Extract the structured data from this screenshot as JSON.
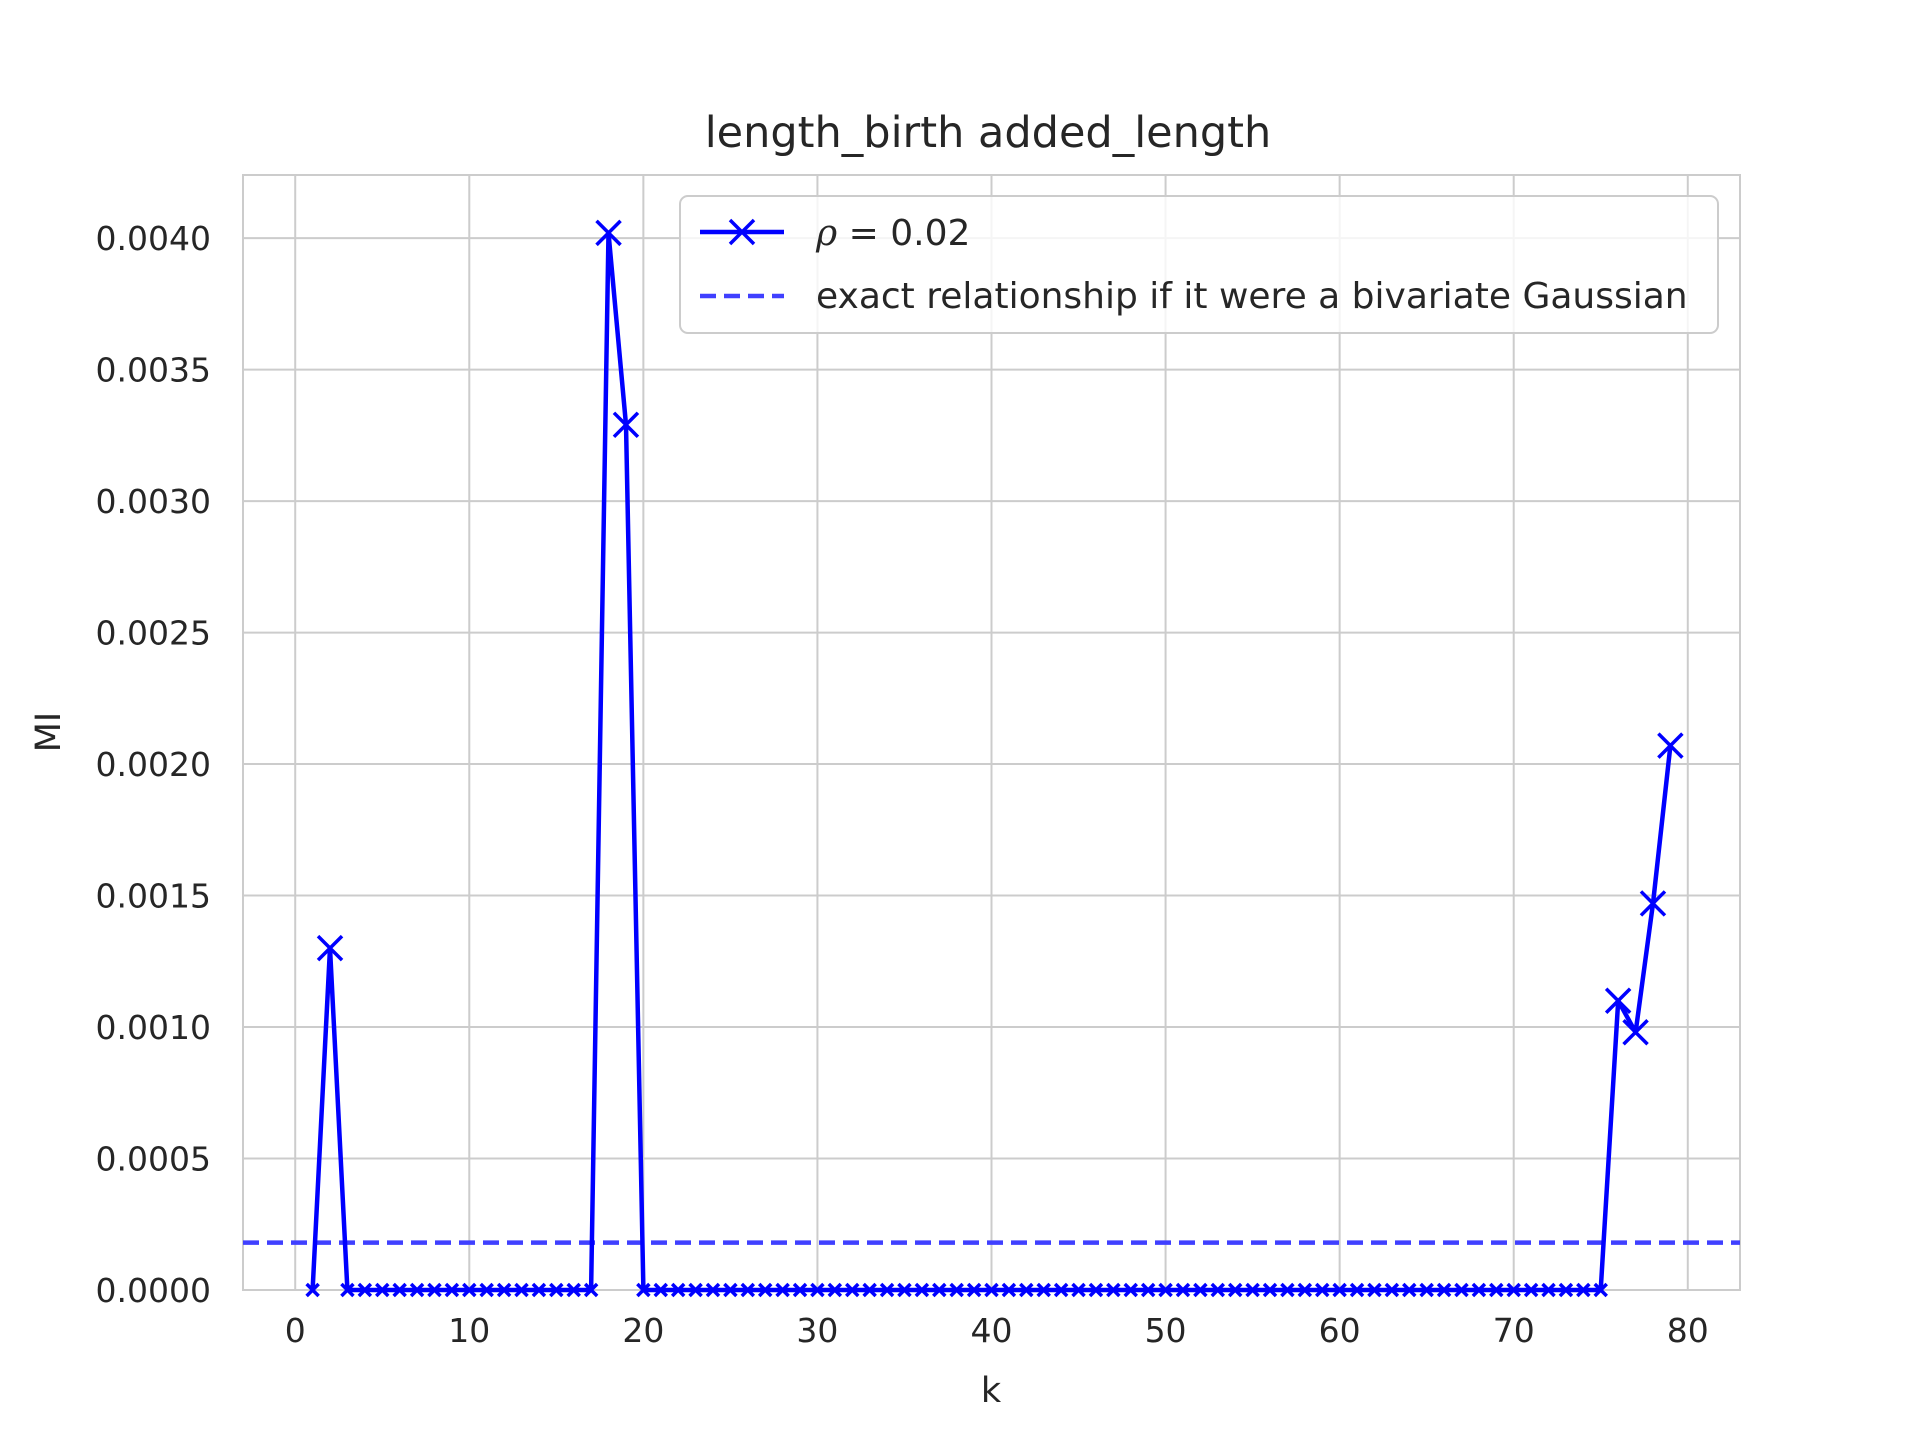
{
  "chart_data": {
    "type": "line",
    "title": "length_birth added_length",
    "xlabel": "k",
    "ylabel": "MI",
    "xlim": [
      -3,
      83
    ],
    "ylim": [
      0,
      0.00424
    ],
    "xticks": [
      0,
      10,
      20,
      30,
      40,
      50,
      60,
      70,
      80
    ],
    "xtick_labels": [
      "0",
      "10",
      "20",
      "30",
      "40",
      "50",
      "60",
      "70",
      "80"
    ],
    "yticks": [
      0,
      0.0005,
      0.001,
      0.0015,
      0.002,
      0.0025,
      0.003,
      0.0035,
      0.004
    ],
    "ytick_labels": [
      "0.0000",
      "0.0005",
      "0.0010",
      "0.0015",
      "0.0020",
      "0.0025",
      "0.0030",
      "0.0035",
      "0.0040"
    ],
    "grid": true,
    "legend_position": "top-right",
    "series": [
      {
        "name": "ρ = 0.02",
        "legend_prefix": "ρ",
        "legend_suffix": " = 0.02",
        "style": "solid",
        "marker": "x",
        "color": "#0000ff",
        "x": [
          1,
          2,
          3,
          4,
          5,
          6,
          7,
          8,
          9,
          10,
          11,
          12,
          13,
          14,
          15,
          16,
          17,
          18,
          19,
          20,
          21,
          22,
          23,
          24,
          25,
          26,
          27,
          28,
          29,
          30,
          31,
          32,
          33,
          34,
          35,
          36,
          37,
          38,
          39,
          40,
          41,
          42,
          43,
          44,
          45,
          46,
          47,
          48,
          49,
          50,
          51,
          52,
          53,
          54,
          55,
          56,
          57,
          58,
          59,
          60,
          61,
          62,
          63,
          64,
          65,
          66,
          67,
          68,
          69,
          70,
          71,
          72,
          73,
          74,
          75,
          76,
          77,
          78,
          79
        ],
        "y": [
          0,
          0.0013,
          0,
          0,
          0,
          0,
          0,
          0,
          0,
          0,
          0,
          0,
          0,
          0,
          0,
          0,
          0,
          0.00402,
          0.00329,
          0,
          0,
          0,
          0,
          0,
          0,
          0,
          0,
          0,
          0,
          0,
          0,
          0,
          0,
          0,
          0,
          0,
          0,
          0,
          0,
          0,
          0,
          0,
          0,
          0,
          0,
          0,
          0,
          0,
          0,
          0,
          0,
          0,
          0,
          0,
          0,
          0,
          0,
          0,
          0,
          0,
          0,
          0,
          0,
          0,
          0,
          0,
          0,
          0,
          0,
          0,
          0,
          0,
          0,
          0,
          0,
          0.0011,
          0.00098,
          0.00147,
          0.00207
        ]
      },
      {
        "name": "exact relationship if it were a bivariate Gaussian",
        "style": "dashed",
        "color": "#4040ff",
        "y_constant": 0.00018
      }
    ]
  }
}
